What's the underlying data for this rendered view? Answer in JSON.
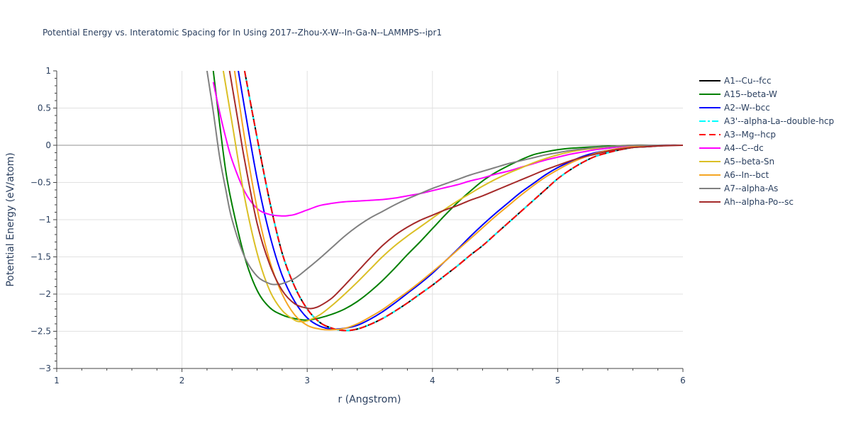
{
  "chart_data": {
    "type": "line",
    "title": "Potential Energy vs. Interatomic Spacing for In Using 2017--Zhou-X-W--In-Ga-N--LAMMPS--ipr1",
    "xlabel": "r (Angstrom)",
    "ylabel": "Potential Energy (eV/atom)",
    "xlim": [
      1,
      6
    ],
    "ylim": [
      -3,
      1
    ],
    "xticks": [
      "1",
      "2",
      "3",
      "4",
      "5",
      "6"
    ],
    "yticks": [
      "1",
      "0.5",
      "0",
      "−0.5",
      "−1",
      "−1.5",
      "−2",
      "−2.5",
      "−3"
    ],
    "grid": true,
    "legend_position": "right",
    "series": [
      {
        "name": "A1--Cu--fcc",
        "color": "#000000",
        "dash": "solid",
        "x": [
          2.5,
          2.6,
          2.7,
          2.8,
          2.9,
          3.0,
          3.1,
          3.2,
          3.3,
          3.4,
          3.5,
          3.6,
          3.7,
          3.8,
          3.9,
          4.0,
          4.1,
          4.2,
          4.3,
          4.4,
          4.5,
          4.6,
          4.7,
          4.8,
          4.9,
          5.0,
          5.1,
          5.2,
          5.3,
          5.4,
          5.5,
          5.6,
          5.7,
          5.8,
          5.9,
          6.0
        ],
        "y": [
          1.0,
          0.1,
          -0.75,
          -1.45,
          -1.9,
          -2.2,
          -2.38,
          -2.46,
          -2.49,
          -2.47,
          -2.41,
          -2.33,
          -2.23,
          -2.12,
          -2.0,
          -1.88,
          -1.75,
          -1.62,
          -1.48,
          -1.35,
          -1.2,
          -1.05,
          -0.9,
          -0.75,
          -0.6,
          -0.45,
          -0.33,
          -0.23,
          -0.15,
          -0.1,
          -0.06,
          -0.03,
          -0.02,
          -0.01,
          0.0,
          0.0
        ]
      },
      {
        "name": "A15--beta-W",
        "color": "#008000",
        "dash": "solid",
        "x": [
          2.25,
          2.3,
          2.35,
          2.4,
          2.5,
          2.6,
          2.7,
          2.8,
          2.9,
          3.0,
          3.1,
          3.2,
          3.3,
          3.4,
          3.5,
          3.6,
          3.7,
          3.8,
          3.9,
          4.0,
          4.1,
          4.2,
          4.3,
          4.4,
          4.5,
          4.6,
          4.7,
          4.8,
          4.9,
          5.0,
          5.1,
          5.2,
          5.3,
          5.4,
          5.5,
          5.6,
          5.8,
          6.0
        ],
        "y": [
          1.0,
          0.3,
          -0.35,
          -0.8,
          -1.5,
          -1.95,
          -2.18,
          -2.28,
          -2.33,
          -2.35,
          -2.32,
          -2.27,
          -2.2,
          -2.1,
          -1.97,
          -1.82,
          -1.65,
          -1.47,
          -1.3,
          -1.12,
          -0.94,
          -0.77,
          -0.62,
          -0.48,
          -0.37,
          -0.28,
          -0.2,
          -0.13,
          -0.09,
          -0.06,
          -0.04,
          -0.03,
          -0.02,
          -0.01,
          -0.01,
          0.0,
          0.0,
          0.0
        ]
      },
      {
        "name": "A2--W--bcc",
        "color": "#0000ff",
        "dash": "solid",
        "x": [
          2.45,
          2.5,
          2.6,
          2.7,
          2.8,
          2.9,
          3.0,
          3.1,
          3.2,
          3.3,
          3.4,
          3.5,
          3.6,
          3.7,
          3.8,
          3.9,
          4.0,
          4.1,
          4.2,
          4.3,
          4.4,
          4.5,
          4.6,
          4.7,
          4.8,
          4.9,
          5.0,
          5.1,
          5.2,
          5.3,
          5.4,
          5.5,
          5.6,
          5.7,
          5.8,
          6.0
        ],
        "y": [
          1.0,
          0.5,
          -0.45,
          -1.2,
          -1.75,
          -2.1,
          -2.32,
          -2.43,
          -2.47,
          -2.46,
          -2.42,
          -2.34,
          -2.24,
          -2.12,
          -1.99,
          -1.86,
          -1.72,
          -1.56,
          -1.4,
          -1.23,
          -1.07,
          -0.92,
          -0.78,
          -0.64,
          -0.52,
          -0.4,
          -0.3,
          -0.22,
          -0.15,
          -0.1,
          -0.07,
          -0.04,
          -0.02,
          -0.01,
          0.0,
          0.0
        ]
      },
      {
        "name": "A3'--alpha-La--double-hcp",
        "color": "#00ffff",
        "dash": "dashdot",
        "x": [
          2.5,
          2.6,
          2.7,
          2.8,
          2.9,
          3.0,
          3.1,
          3.2,
          3.3,
          3.4,
          3.5,
          3.6,
          3.7,
          3.8,
          3.9,
          4.0,
          4.1,
          4.2,
          4.3,
          4.4,
          4.5,
          4.6,
          4.7,
          4.8,
          4.9,
          5.0,
          5.1,
          5.2,
          5.3,
          5.4,
          5.5,
          5.6,
          5.7,
          5.8,
          5.9,
          6.0
        ],
        "y": [
          1.0,
          0.1,
          -0.75,
          -1.45,
          -1.9,
          -2.2,
          -2.38,
          -2.46,
          -2.49,
          -2.47,
          -2.41,
          -2.33,
          -2.23,
          -2.12,
          -2.0,
          -1.88,
          -1.75,
          -1.62,
          -1.48,
          -1.35,
          -1.2,
          -1.05,
          -0.9,
          -0.75,
          -0.6,
          -0.45,
          -0.33,
          -0.23,
          -0.15,
          -0.1,
          -0.06,
          -0.03,
          -0.02,
          -0.01,
          0.0,
          0.0
        ]
      },
      {
        "name": "A3--Mg--hcp",
        "color": "#ff0000",
        "dash": "dash",
        "x": [
          2.5,
          2.6,
          2.7,
          2.8,
          2.9,
          3.0,
          3.1,
          3.2,
          3.3,
          3.4,
          3.5,
          3.6,
          3.7,
          3.8,
          3.9,
          4.0,
          4.1,
          4.2,
          4.3,
          4.4,
          4.5,
          4.6,
          4.7,
          4.8,
          4.9,
          5.0,
          5.1,
          5.2,
          5.3,
          5.4,
          5.5,
          5.6,
          5.7,
          5.8,
          5.9,
          6.0
        ],
        "y": [
          1.0,
          0.1,
          -0.75,
          -1.45,
          -1.9,
          -2.2,
          -2.38,
          -2.46,
          -2.49,
          -2.47,
          -2.41,
          -2.33,
          -2.23,
          -2.12,
          -2.0,
          -1.88,
          -1.75,
          -1.62,
          -1.48,
          -1.35,
          -1.2,
          -1.05,
          -0.9,
          -0.75,
          -0.6,
          -0.45,
          -0.33,
          -0.23,
          -0.15,
          -0.1,
          -0.06,
          -0.03,
          -0.02,
          -0.01,
          0.0,
          0.0
        ]
      },
      {
        "name": "A4--C--dc",
        "color": "#ff00ff",
        "dash": "solid",
        "x": [
          2.25,
          2.3,
          2.35,
          2.4,
          2.5,
          2.6,
          2.7,
          2.8,
          2.85,
          2.9,
          3.0,
          3.1,
          3.2,
          3.3,
          3.4,
          3.5,
          3.6,
          3.7,
          3.8,
          3.9,
          4.0,
          4.1,
          4.2,
          4.3,
          4.4,
          4.5,
          4.6,
          4.7,
          4.8,
          4.9,
          5.0,
          5.1,
          5.2,
          5.3,
          5.4,
          5.5,
          5.6,
          5.8,
          6.0
        ],
        "y": [
          0.85,
          0.45,
          0.1,
          -0.2,
          -0.62,
          -0.85,
          -0.93,
          -0.95,
          -0.945,
          -0.93,
          -0.87,
          -0.81,
          -0.78,
          -0.76,
          -0.75,
          -0.74,
          -0.73,
          -0.71,
          -0.68,
          -0.65,
          -0.61,
          -0.57,
          -0.53,
          -0.48,
          -0.44,
          -0.39,
          -0.35,
          -0.3,
          -0.25,
          -0.2,
          -0.16,
          -0.12,
          -0.09,
          -0.06,
          -0.04,
          -0.02,
          -0.01,
          0.0,
          0.0
        ]
      },
      {
        "name": "A5--beta-Sn",
        "color": "#dbbf25",
        "dash": "solid",
        "x": [
          2.33,
          2.4,
          2.5,
          2.6,
          2.7,
          2.8,
          2.9,
          2.95,
          3.0,
          3.1,
          3.2,
          3.3,
          3.4,
          3.5,
          3.6,
          3.7,
          3.8,
          3.9,
          4.0,
          4.1,
          4.2,
          4.3,
          4.4,
          4.5,
          4.6,
          4.7,
          4.8,
          4.9,
          5.0,
          5.1,
          5.2,
          5.3,
          5.4,
          5.5,
          5.6,
          5.8,
          6.0
        ],
        "y": [
          1.0,
          0.3,
          -0.7,
          -1.45,
          -1.95,
          -2.22,
          -2.35,
          -2.37,
          -2.36,
          -2.28,
          -2.15,
          -2.0,
          -1.84,
          -1.67,
          -1.5,
          -1.35,
          -1.22,
          -1.1,
          -0.98,
          -0.86,
          -0.75,
          -0.65,
          -0.55,
          -0.46,
          -0.38,
          -0.31,
          -0.24,
          -0.18,
          -0.13,
          -0.09,
          -0.06,
          -0.04,
          -0.02,
          -0.01,
          0.0,
          0.0,
          0.0
        ]
      },
      {
        "name": "A6--In--bct",
        "color": "#f5a623",
        "dash": "solid",
        "x": [
          2.42,
          2.5,
          2.6,
          2.7,
          2.8,
          2.9,
          3.0,
          3.1,
          3.2,
          3.3,
          3.4,
          3.5,
          3.6,
          3.7,
          3.8,
          3.9,
          4.0,
          4.1,
          4.2,
          4.3,
          4.4,
          4.5,
          4.6,
          4.7,
          4.8,
          4.9,
          5.0,
          5.1,
          5.2,
          5.3,
          5.4,
          5.5,
          5.6,
          5.7,
          5.8,
          6.0
        ],
        "y": [
          1.0,
          0.1,
          -0.85,
          -1.55,
          -2.0,
          -2.28,
          -2.42,
          -2.47,
          -2.48,
          -2.46,
          -2.4,
          -2.31,
          -2.21,
          -2.09,
          -1.97,
          -1.84,
          -1.7,
          -1.56,
          -1.41,
          -1.26,
          -1.11,
          -0.96,
          -0.82,
          -0.68,
          -0.55,
          -0.43,
          -0.33,
          -0.24,
          -0.17,
          -0.11,
          -0.07,
          -0.04,
          -0.02,
          -0.01,
          0.0,
          0.0
        ]
      },
      {
        "name": "A7--alpha-As",
        "color": "#808080",
        "dash": "solid",
        "x": [
          2.2,
          2.25,
          2.3,
          2.35,
          2.4,
          2.5,
          2.6,
          2.7,
          2.75,
          2.8,
          2.9,
          3.0,
          3.1,
          3.2,
          3.3,
          3.4,
          3.5,
          3.6,
          3.7,
          3.8,
          3.9,
          4.0,
          4.1,
          4.2,
          4.3,
          4.4,
          4.5,
          4.6,
          4.7,
          4.8,
          4.9,
          5.0,
          5.1,
          5.2,
          5.3,
          5.4,
          5.5,
          5.6,
          5.8,
          6.0
        ],
        "y": [
          1.0,
          0.45,
          -0.15,
          -0.6,
          -1.0,
          -1.5,
          -1.76,
          -1.86,
          -1.87,
          -1.86,
          -1.79,
          -1.66,
          -1.52,
          -1.37,
          -1.22,
          -1.09,
          -0.98,
          -0.89,
          -0.8,
          -0.72,
          -0.65,
          -0.58,
          -0.52,
          -0.46,
          -0.4,
          -0.35,
          -0.3,
          -0.25,
          -0.21,
          -0.17,
          -0.13,
          -0.1,
          -0.07,
          -0.05,
          -0.03,
          -0.02,
          -0.01,
          0.0,
          0.0,
          0.0
        ]
      },
      {
        "name": "Ah--alpha-Po--sc",
        "color": "#a52a2a",
        "dash": "solid",
        "x": [
          2.38,
          2.45,
          2.5,
          2.6,
          2.7,
          2.8,
          2.9,
          3.0,
          3.05,
          3.1,
          3.2,
          3.3,
          3.4,
          3.5,
          3.6,
          3.7,
          3.8,
          3.9,
          4.0,
          4.1,
          4.2,
          4.3,
          4.4,
          4.5,
          4.6,
          4.7,
          4.8,
          4.9,
          5.0,
          5.1,
          5.2,
          5.3,
          5.4,
          5.5,
          5.6,
          5.7,
          5.8,
          6.0
        ],
        "y": [
          1.0,
          0.3,
          -0.2,
          -1.05,
          -1.6,
          -1.95,
          -2.13,
          -2.19,
          -2.19,
          -2.16,
          -2.05,
          -1.88,
          -1.7,
          -1.52,
          -1.35,
          -1.21,
          -1.1,
          -1.01,
          -0.94,
          -0.87,
          -0.81,
          -0.74,
          -0.68,
          -0.61,
          -0.54,
          -0.47,
          -0.4,
          -0.33,
          -0.27,
          -0.21,
          -0.16,
          -0.12,
          -0.08,
          -0.05,
          -0.03,
          -0.02,
          -0.01,
          0.0
        ]
      }
    ]
  }
}
